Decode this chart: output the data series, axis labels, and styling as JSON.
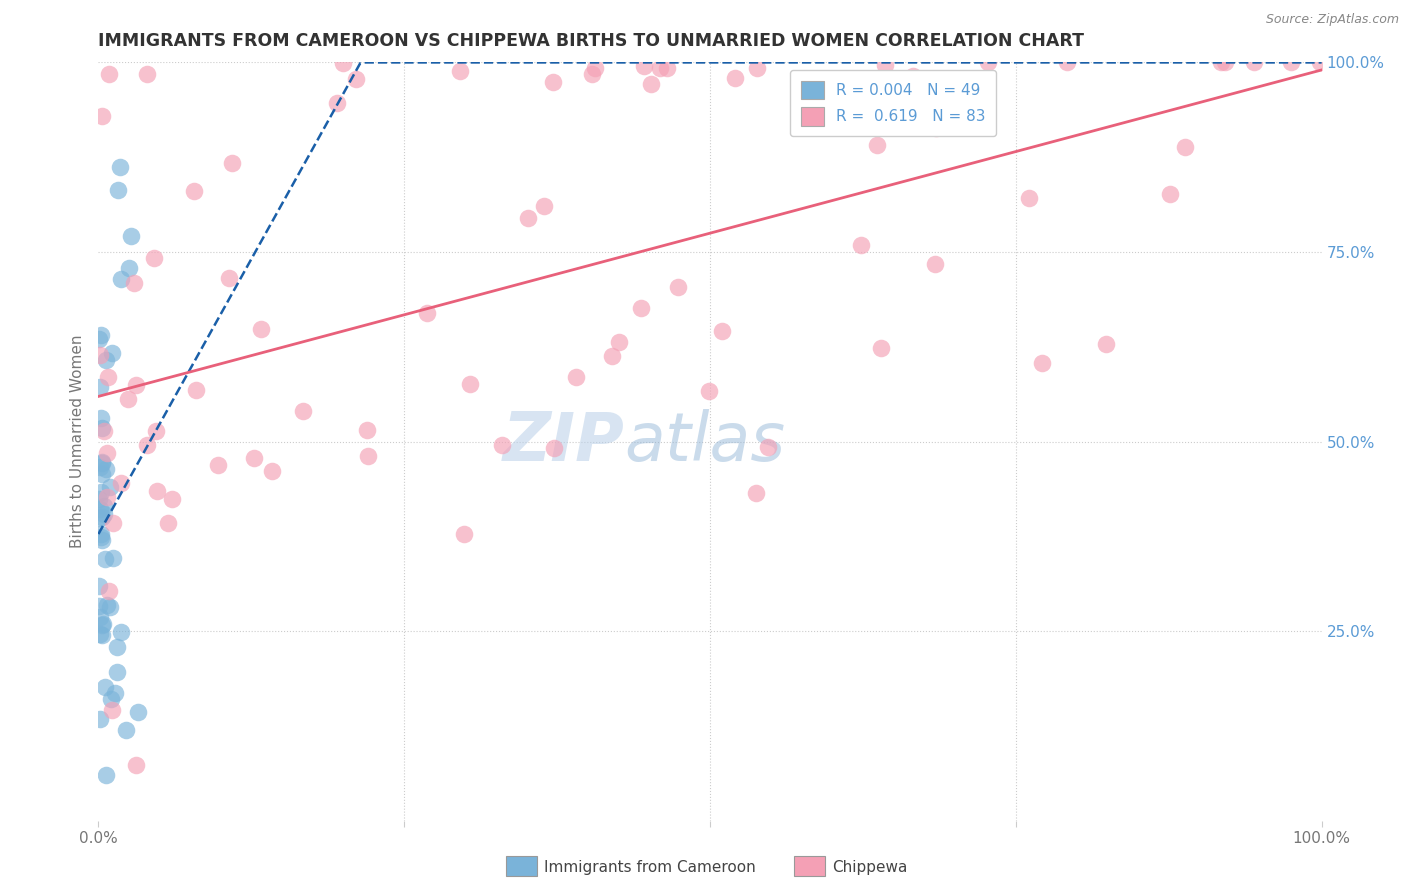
{
  "title": "IMMIGRANTS FROM CAMEROON VS CHIPPEWA BIRTHS TO UNMARRIED WOMEN CORRELATION CHART",
  "source": "Source: ZipAtlas.com",
  "ylabel": "Births to Unmarried Women",
  "legend_blue_r": "R = 0.004",
  "legend_blue_n": "N = 49",
  "legend_pink_r": "R =  0.619",
  "legend_pink_n": "N = 83",
  "legend_blue_label": "Immigrants from Cameroon",
  "legend_pink_label": "Chippewa",
  "blue_color": "#7ab3d9",
  "pink_color": "#f4a0b5",
  "blue_line_color": "#1a5fa8",
  "pink_line_color": "#e8607a",
  "watermark_zip": "ZIP",
  "watermark_atlas": "atlas",
  "background_color": "#ffffff",
  "grid_color": "#cccccc",
  "title_color": "#333333",
  "axis_color": "#777777",
  "right_axis_color": "#5b9bd5"
}
